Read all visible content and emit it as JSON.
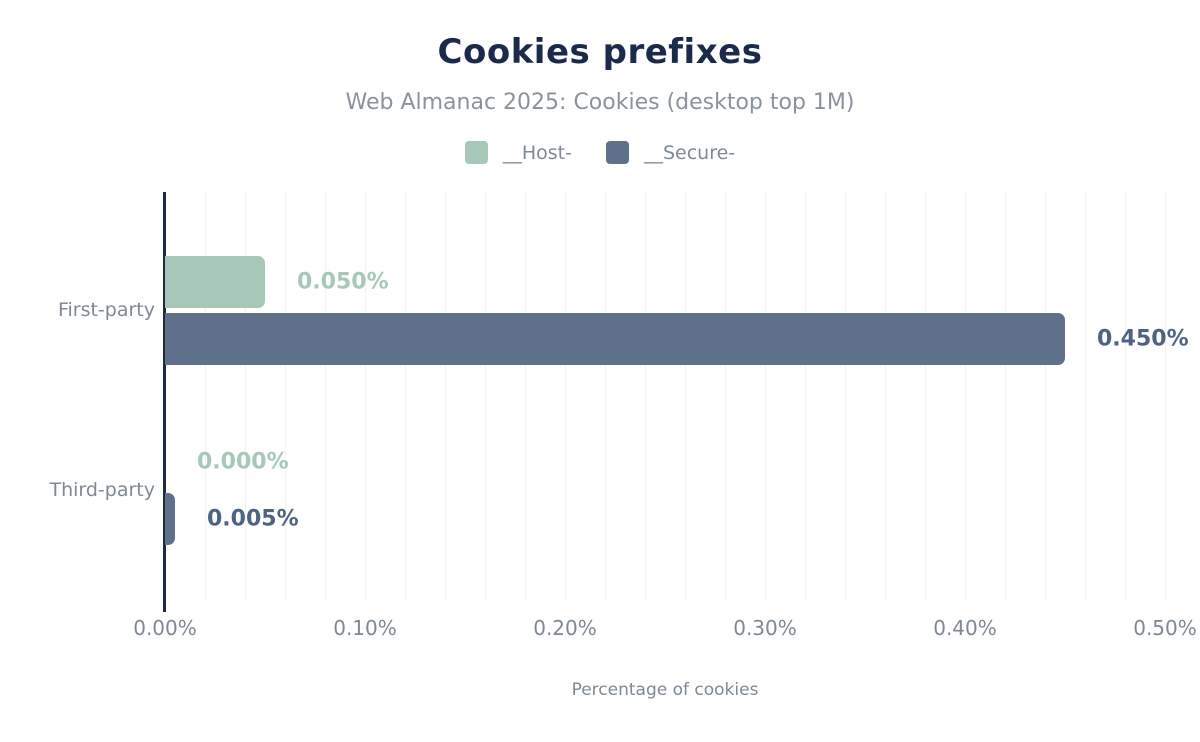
{
  "header": {
    "title": "Cookies prefixes",
    "subtitle": "Web Almanac 2025: Cookies (desktop top 1M)"
  },
  "legend": {
    "items": [
      {
        "label": "__Host-",
        "color": "#a7c8b8"
      },
      {
        "label": "__Secure-",
        "color": "#5f718a"
      }
    ]
  },
  "chart_data": {
    "type": "bar",
    "orientation": "horizontal",
    "title": "Cookies prefixes",
    "subtitle": "Web Almanac 2025: Cookies (desktop top 1M)",
    "categories": [
      "First-party",
      "Third-party"
    ],
    "series": [
      {
        "name": "__Host-",
        "color": "#a7c8b8",
        "label_color": "#a7c8b8",
        "values": [
          0.05,
          0.0
        ],
        "labels": [
          "0.050%",
          "0.000%"
        ]
      },
      {
        "name": "__Secure-",
        "color": "#5f718a",
        "label_color": "#4e6384",
        "values": [
          0.45,
          0.005
        ],
        "labels": [
          "0.450%",
          "0.005%"
        ]
      }
    ],
    "xlabel": "Percentage of cookies",
    "xlim": [
      0,
      0.5
    ],
    "xticks": [
      "0.00%",
      "0.10%",
      "0.20%",
      "0.30%",
      "0.40%",
      "0.50%"
    ],
    "grid": true,
    "grid_step": 0.02,
    "legend_position": "top",
    "value_labels": "outside-end"
  },
  "colors": {
    "title_text": "#1b2a4a",
    "subtitle_text": "#8a939c",
    "axis_text": "#7e8994",
    "axis_line": "#1e2a44",
    "gridline": "#f2f2f4",
    "background": "#ffffff"
  }
}
